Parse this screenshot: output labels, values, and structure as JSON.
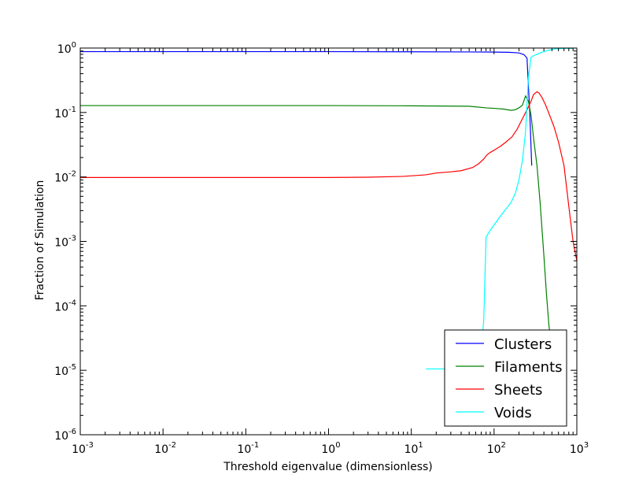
{
  "chart_data": {
    "type": "line",
    "xlabel": "Threshold eigenvalue (dimensionless)",
    "ylabel": "Fraction of Simulation",
    "xscale": "log",
    "yscale": "log",
    "xlim": [
      0.001,
      1000
    ],
    "ylim": [
      1e-06,
      1
    ],
    "xticks": [
      {
        "base": "10",
        "exp": "-3"
      },
      {
        "base": "10",
        "exp": "-2"
      },
      {
        "base": "10",
        "exp": "-1"
      },
      {
        "base": "10",
        "exp": "0"
      },
      {
        "base": "10",
        "exp": "1"
      },
      {
        "base": "10",
        "exp": "2"
      },
      {
        "base": "10",
        "exp": "3"
      }
    ],
    "yticks": [
      {
        "base": "10",
        "exp": "-6"
      },
      {
        "base": "10",
        "exp": "-5"
      },
      {
        "base": "10",
        "exp": "-4"
      },
      {
        "base": "10",
        "exp": "-3"
      },
      {
        "base": "10",
        "exp": "-2"
      },
      {
        "base": "10",
        "exp": "-1"
      },
      {
        "base": "10",
        "exp": "0"
      }
    ],
    "grid": false,
    "legend_position": "lower-right",
    "series": [
      {
        "name": "Clusters",
        "color": "#0000ff",
        "x": [
          0.001,
          0.01,
          0.1,
          1,
          10,
          50,
          100,
          150,
          200,
          230,
          250,
          270,
          285
        ],
        "y": [
          0.88,
          0.88,
          0.88,
          0.88,
          0.875,
          0.87,
          0.865,
          0.86,
          0.84,
          0.79,
          0.7,
          0.1,
          0.015
        ]
      },
      {
        "name": "Filaments",
        "color": "#008000",
        "x": [
          0.001,
          0.01,
          0.1,
          1,
          10,
          50,
          80,
          100,
          130,
          160,
          180,
          200,
          220,
          240,
          260,
          280,
          300,
          330,
          360,
          400,
          430,
          460,
          500
        ],
        "y": [
          0.128,
          0.128,
          0.128,
          0.128,
          0.127,
          0.125,
          0.118,
          0.116,
          0.113,
          0.108,
          0.11,
          0.118,
          0.13,
          0.18,
          0.15,
          0.09,
          0.04,
          0.015,
          0.004,
          0.0006,
          0.00015,
          5e-05,
          2e-05
        ]
      },
      {
        "name": "Sheets",
        "color": "#ff0000",
        "x": [
          0.001,
          0.01,
          0.1,
          1,
          3,
          8,
          15,
          20,
          30,
          40,
          55,
          65,
          75,
          82,
          90,
          105,
          120,
          140,
          165,
          190,
          220,
          250,
          280,
          300,
          330,
          350,
          380,
          420,
          470,
          530,
          600,
          700,
          800,
          900,
          1000
        ],
        "y": [
          0.0098,
          0.0098,
          0.0098,
          0.0098,
          0.0099,
          0.0102,
          0.0108,
          0.0115,
          0.012,
          0.0125,
          0.014,
          0.016,
          0.019,
          0.022,
          0.024,
          0.027,
          0.03,
          0.035,
          0.042,
          0.055,
          0.08,
          0.11,
          0.15,
          0.19,
          0.21,
          0.2,
          0.17,
          0.13,
          0.09,
          0.06,
          0.035,
          0.015,
          0.0035,
          0.001,
          0.0005
        ]
      },
      {
        "name": "Voids",
        "color": "#00ffff",
        "x": [
          15,
          30,
          40,
          60,
          66,
          70,
          75,
          80,
          90,
          100,
          120,
          140,
          160,
          180,
          200,
          220,
          240,
          260,
          280,
          300,
          330,
          360,
          400,
          450,
          500,
          550,
          600,
          700,
          800,
          900
        ],
        "y": [
          1.05e-05,
          1.05e-05,
          1.05e-05,
          1.05e-05,
          1.05e-05,
          2e-05,
          6e-05,
          0.00115,
          0.0015,
          0.0018,
          0.0025,
          0.0032,
          0.004,
          0.0055,
          0.009,
          0.018,
          0.05,
          0.35,
          0.72,
          0.76,
          0.8,
          0.84,
          0.88,
          0.92,
          0.95,
          0.97,
          0.98,
          0.99,
          0.99,
          0.99
        ]
      }
    ]
  }
}
